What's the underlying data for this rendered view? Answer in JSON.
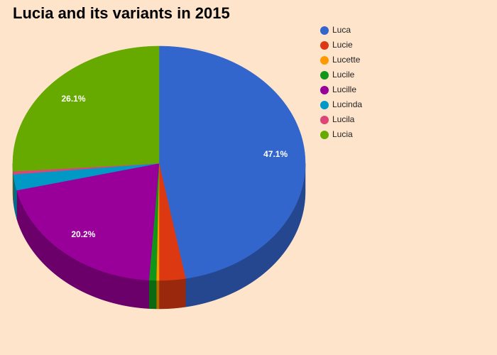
{
  "chart_data": {
    "type": "pie",
    "title": "Lucia and its variants in 2015",
    "categories": [
      "Luca",
      "Lucie",
      "Lucette",
      "Lucile",
      "Lucille",
      "Lucinda",
      "Lucila",
      "Lucia"
    ],
    "values": [
      47.1,
      2.9,
      0.3,
      0.8,
      20.2,
      2.2,
      0.4,
      26.1
    ],
    "value_labels": [
      "47.1%",
      null,
      null,
      null,
      "20.2%",
      null,
      null,
      "26.1%"
    ],
    "colors": [
      "#3366cc",
      "#dc3912",
      "#ff9900",
      "#109618",
      "#990099",
      "#0099c6",
      "#dd4477",
      "#66aa00"
    ],
    "legend": "right"
  }
}
